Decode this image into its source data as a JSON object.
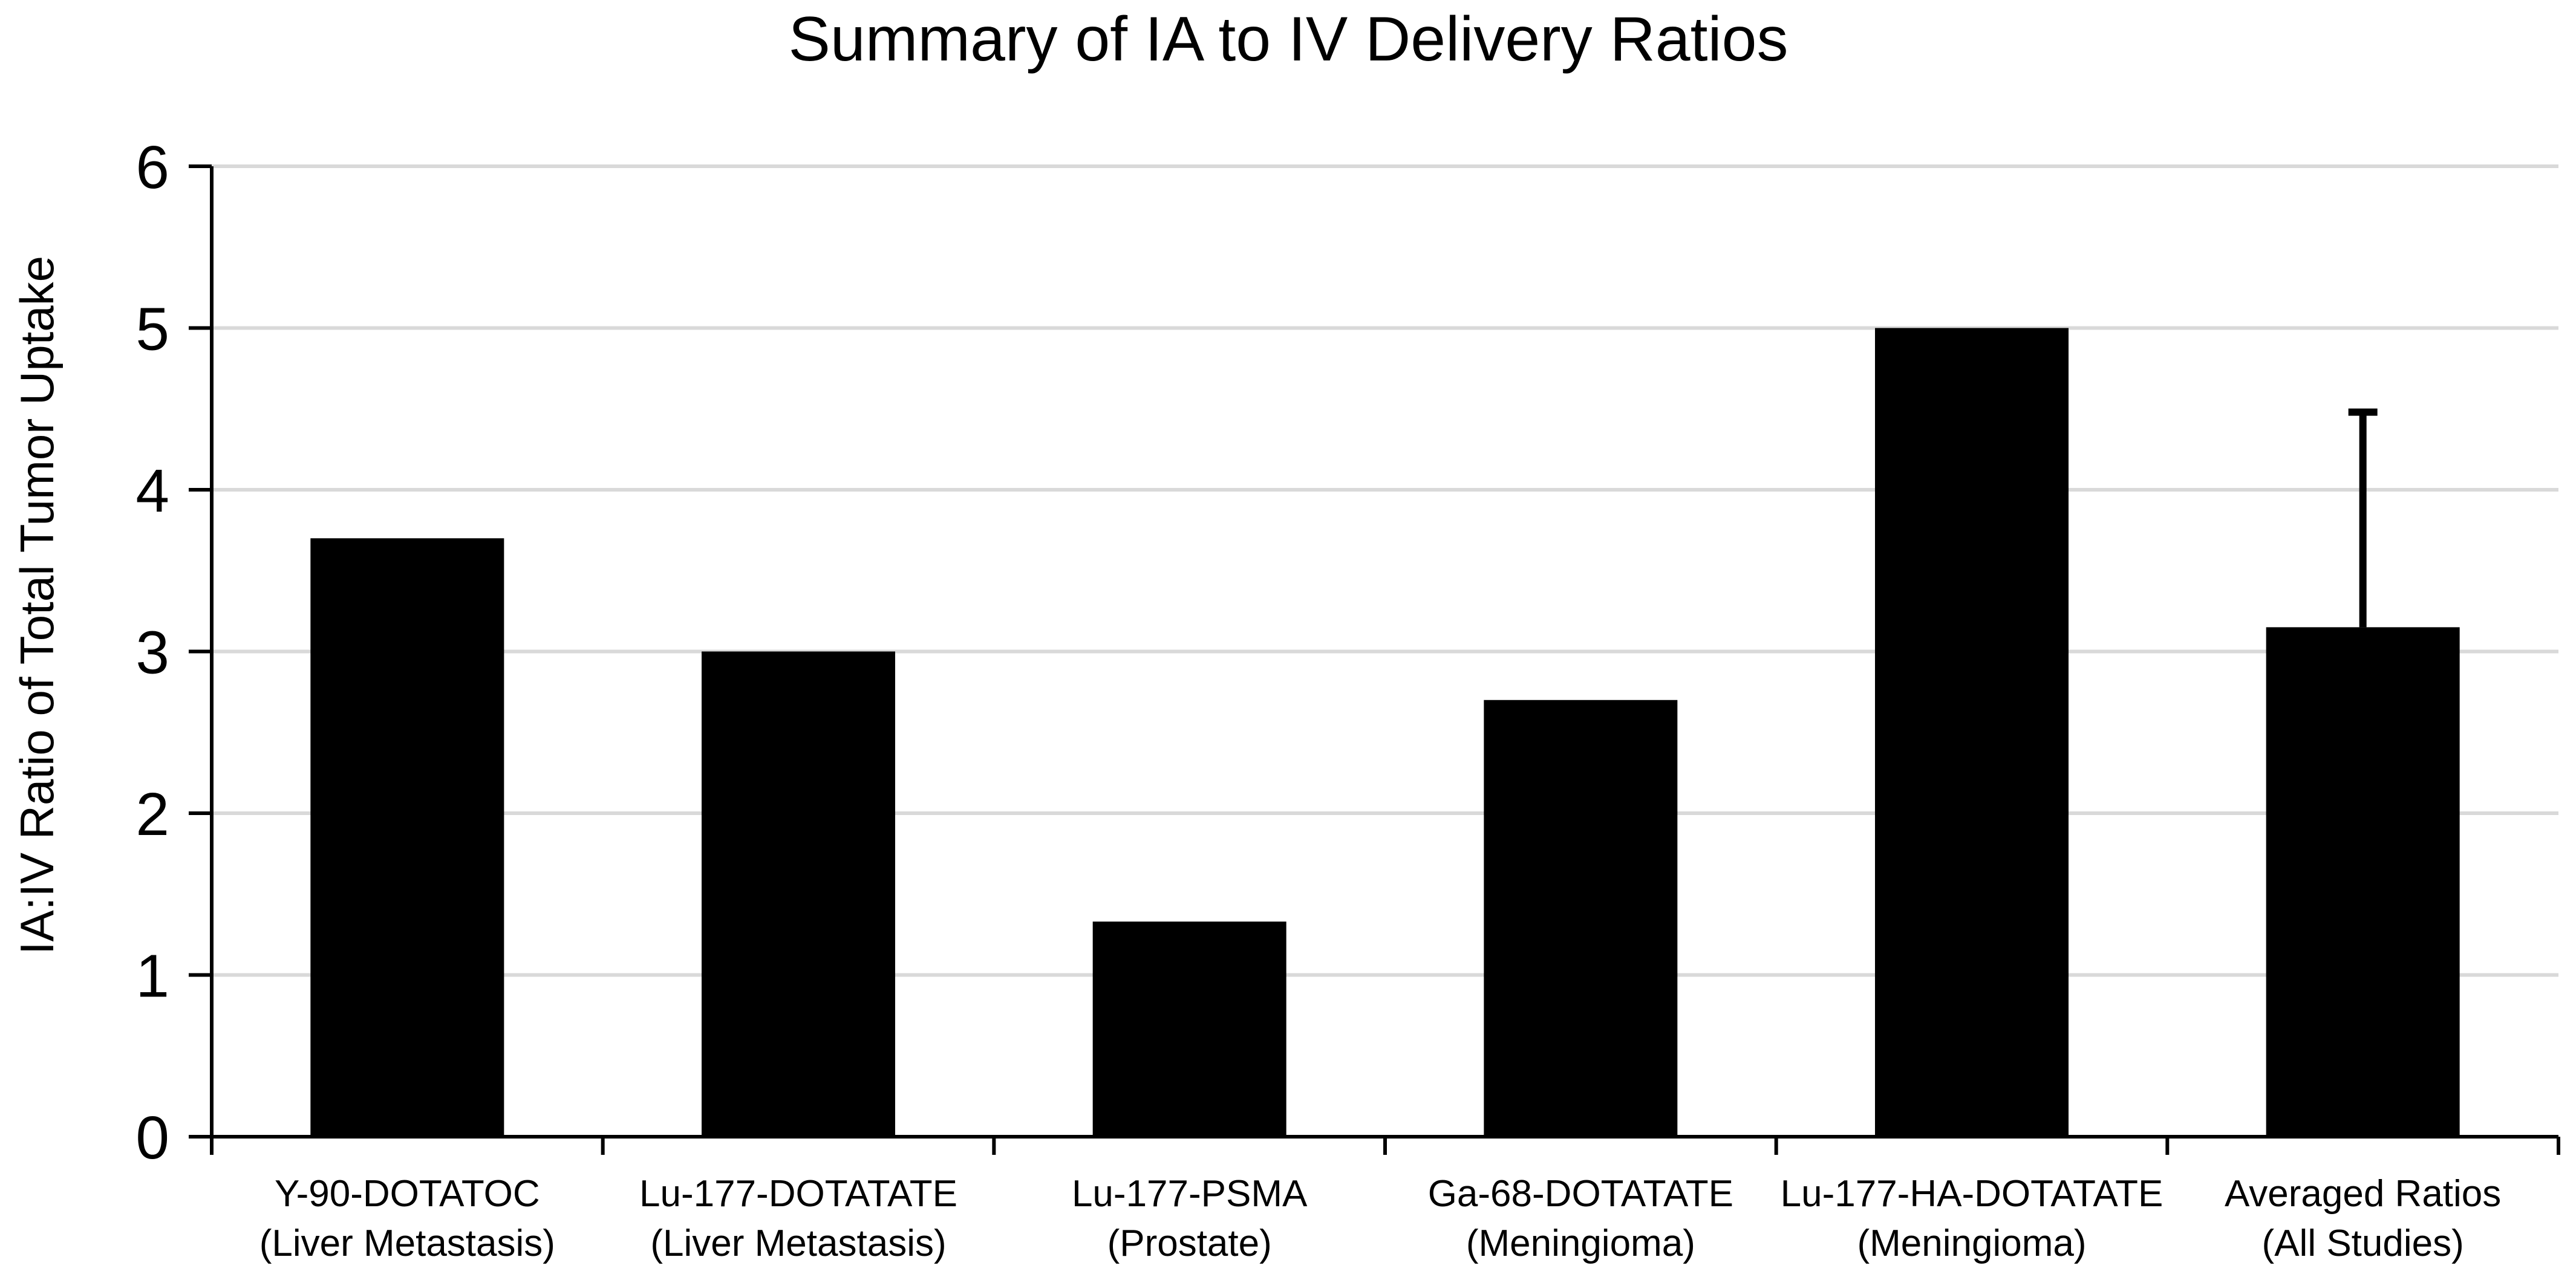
{
  "chart_data": {
    "type": "bar",
    "title": "Summary of IA to IV Delivery Ratios",
    "ylabel": "IA:IV Ratio of Total Tumor Uptake",
    "xlabel": "",
    "ylim": [
      0,
      6
    ],
    "yticks": [
      0,
      1,
      2,
      3,
      4,
      5,
      6
    ],
    "grid": true,
    "legend": "none",
    "bar_color": "#000000",
    "grid_color": "#d9d9d9",
    "categories": [
      {
        "line1": "Y-90-DOTATOC",
        "line2": "(Liver Metastasis)"
      },
      {
        "line1": "Lu-177-DOTATATE",
        "line2": "(Liver Metastasis)"
      },
      {
        "line1": "Lu-177-PSMA",
        "line2": "(Prostate)"
      },
      {
        "line1": "Ga-68-DOTATATE",
        "line2": "(Meningioma)"
      },
      {
        "line1": "Lu-177-HA-DOTATATE",
        "line2": "(Meningioma)"
      },
      {
        "line1": "Averaged Ratios",
        "line2": "(All Studies)"
      }
    ],
    "values": [
      3.7,
      3.0,
      1.33,
      2.7,
      5.0,
      3.15
    ],
    "error_bars": [
      null,
      null,
      null,
      null,
      null,
      1.33
    ]
  }
}
